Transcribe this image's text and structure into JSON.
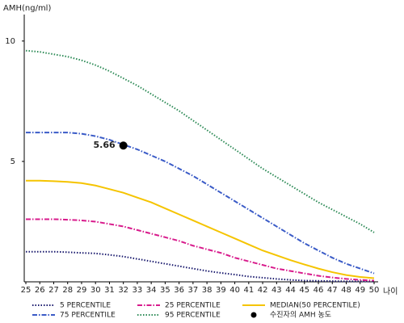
{
  "chart_data": {
    "type": "line",
    "y_label": "AMH(ng/ml)",
    "x_label": "나이",
    "x": [
      25,
      26,
      27,
      28,
      29,
      30,
      31,
      32,
      33,
      34,
      35,
      36,
      37,
      38,
      39,
      40,
      41,
      42,
      43,
      44,
      45,
      46,
      47,
      48,
      49,
      50
    ],
    "xlim": [
      25,
      50
    ],
    "xticks": [
      25,
      26,
      27,
      28,
      29,
      30,
      31,
      32,
      33,
      34,
      35,
      36,
      37,
      38,
      39,
      40,
      41,
      42,
      43,
      44,
      45,
      46,
      47,
      48,
      49,
      50
    ],
    "ylim": [
      0,
      11
    ],
    "yticks": [
      5,
      10
    ],
    "series": [
      {
        "name": "5 PERCENTILE",
        "color": "#1a1a6e",
        "style": "dotted",
        "values": [
          1.25,
          1.25,
          1.25,
          1.23,
          1.2,
          1.18,
          1.12,
          1.05,
          0.95,
          0.85,
          0.75,
          0.65,
          0.55,
          0.45,
          0.37,
          0.3,
          0.22,
          0.17,
          0.12,
          0.08,
          0.05,
          0.04,
          0.03,
          0.02,
          0.02,
          0.01
        ]
      },
      {
        "name": "75 PERCENTILE",
        "color": "#3a5bc7",
        "style": "dashdot",
        "values": [
          6.2,
          6.2,
          6.2,
          6.2,
          6.15,
          6.05,
          5.9,
          5.7,
          5.5,
          5.25,
          5.0,
          4.7,
          4.4,
          4.05,
          3.7,
          3.35,
          3.0,
          2.65,
          2.3,
          1.95,
          1.6,
          1.3,
          1.0,
          0.75,
          0.55,
          0.35
        ]
      },
      {
        "name": "25 PERCENTILE",
        "color": "#d81b8c",
        "style": "dashdot",
        "values": [
          2.6,
          2.6,
          2.6,
          2.58,
          2.55,
          2.5,
          2.4,
          2.3,
          2.15,
          2.0,
          1.85,
          1.7,
          1.5,
          1.35,
          1.2,
          1.0,
          0.85,
          0.7,
          0.55,
          0.45,
          0.35,
          0.25,
          0.18,
          0.12,
          0.08,
          0.05
        ]
      },
      {
        "name": "95 PERCENTILE",
        "color": "#2e8b57",
        "style": "dotted",
        "values": [
          9.6,
          9.55,
          9.45,
          9.35,
          9.2,
          9.0,
          8.75,
          8.45,
          8.15,
          7.8,
          7.45,
          7.1,
          6.7,
          6.3,
          5.9,
          5.5,
          5.1,
          4.7,
          4.35,
          4.0,
          3.65,
          3.3,
          3.0,
          2.7,
          2.4,
          2.05
        ]
      },
      {
        "name": "MEDIAN(50 PERCENTILE)",
        "color": "#f5c400",
        "style": "solid",
        "values": [
          4.2,
          4.2,
          4.18,
          4.15,
          4.1,
          4.0,
          3.85,
          3.7,
          3.5,
          3.3,
          3.05,
          2.8,
          2.55,
          2.3,
          2.05,
          1.8,
          1.55,
          1.3,
          1.1,
          0.9,
          0.72,
          0.55,
          0.4,
          0.28,
          0.2,
          0.15
        ]
      },
      {
        "name": "수진자의 AMH 농도",
        "color": "#000000",
        "style": "point",
        "x": [
          32
        ],
        "values": [
          5.66
        ]
      }
    ]
  }
}
